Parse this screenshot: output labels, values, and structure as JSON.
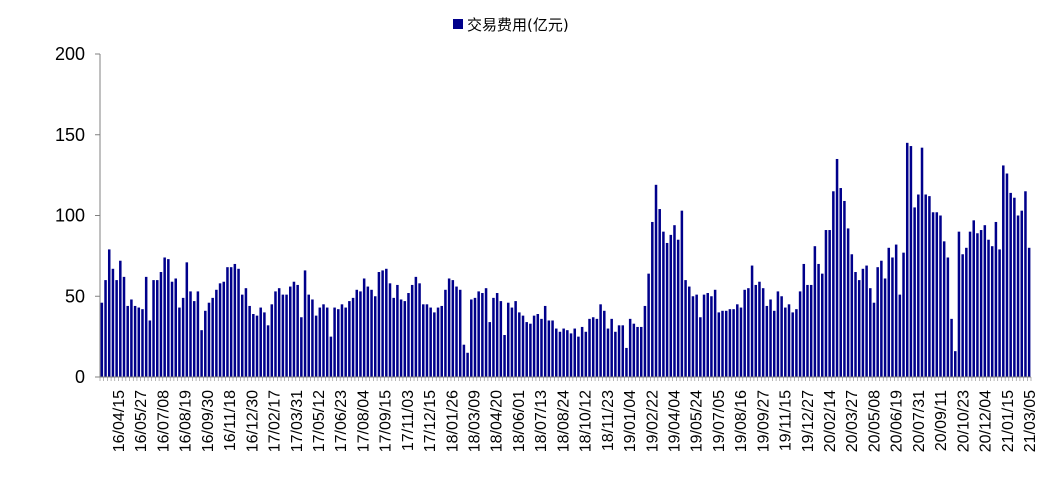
{
  "chart_data": {
    "type": "bar",
    "title": "",
    "xlabel": "",
    "ylabel": "",
    "ylim": [
      0,
      200
    ],
    "yticks": [
      0,
      50,
      100,
      150,
      200
    ],
    "grid": false,
    "legend_position": "top-center",
    "bar_color": "#00008B",
    "series": [
      {
        "name": "交易费用(亿元)",
        "values": [
          46,
          60,
          79,
          67,
          60,
          72,
          62,
          44,
          48,
          44,
          43,
          42,
          62,
          35,
          60,
          60,
          65,
          74,
          73,
          59,
          61,
          43,
          49,
          71,
          53,
          47,
          53,
          29,
          41,
          46,
          49,
          54,
          58,
          59,
          68,
          68,
          70,
          67,
          51,
          55,
          44,
          39,
          38,
          43,
          40,
          32,
          45,
          53,
          55,
          51,
          51,
          56,
          59,
          57,
          37,
          66,
          51,
          48,
          38,
          43,
          45,
          43,
          25,
          43,
          42,
          45,
          43,
          47,
          49,
          54,
          53,
          61,
          56,
          54,
          50,
          65,
          66,
          67,
          58,
          49,
          57,
          48,
          47,
          52,
          57,
          62,
          58,
          45,
          45,
          43,
          40,
          43,
          44,
          54,
          61,
          60,
          56,
          54,
          20,
          15,
          48,
          49,
          53,
          52,
          55,
          34,
          49,
          52,
          47,
          26,
          46,
          43,
          47,
          40,
          38,
          34,
          33,
          38,
          39,
          36,
          44,
          35,
          35,
          30,
          28,
          30,
          29,
          27,
          30,
          25,
          31,
          28,
          36,
          37,
          36,
          45,
          41,
          30,
          36,
          28,
          32,
          32,
          18,
          36,
          33,
          31,
          31,
          44,
          64,
          96,
          119,
          104,
          90,
          83,
          88,
          94,
          85,
          103,
          60,
          56,
          50,
          51,
          37,
          51,
          52,
          50,
          54,
          40,
          41,
          41,
          42,
          42,
          45,
          43,
          54,
          55,
          69,
          57,
          59,
          55,
          44,
          48,
          41,
          53,
          50,
          43,
          45,
          40,
          42,
          53,
          70,
          57,
          57,
          81,
          70,
          64,
          91,
          91,
          115,
          135,
          117,
          109,
          92,
          76,
          65,
          60,
          67,
          69,
          55,
          46,
          68,
          72,
          61,
          80,
          74,
          82,
          51,
          77,
          145,
          143,
          105,
          113,
          142,
          113,
          112,
          102,
          102,
          100,
          84,
          74,
          36,
          16,
          90,
          76,
          80,
          90,
          97,
          89,
          91,
          94,
          85,
          81,
          96,
          79,
          131,
          126,
          114,
          111,
          100,
          103,
          115,
          80
        ]
      }
    ],
    "x_tick_labels": [
      "16/04/15",
      "16/05/27",
      "16/07/08",
      "16/08/19",
      "16/09/30",
      "16/11/18",
      "16/12/30",
      "17/02/17",
      "17/03/31",
      "17/05/12",
      "17/06/23",
      "17/08/04",
      "17/09/15",
      "17/11/03",
      "17/12/15",
      "18/01/26",
      "18/03/09",
      "18/04/20",
      "18/06/01",
      "18/07/13",
      "18/08/24",
      "18/10/12",
      "18/11/23",
      "19/01/04",
      "19/02/22",
      "19/04/04",
      "19/05/24",
      "19/07/05",
      "19/08/16",
      "19/09/27",
      "19/11/15",
      "19/12/27",
      "20/02/14",
      "20/03/27",
      "20/05/08",
      "20/06/19",
      "20/07/31",
      "20/09/11",
      "20/10/23",
      "20/12/04",
      "21/01/15",
      "21/03/05"
    ]
  }
}
